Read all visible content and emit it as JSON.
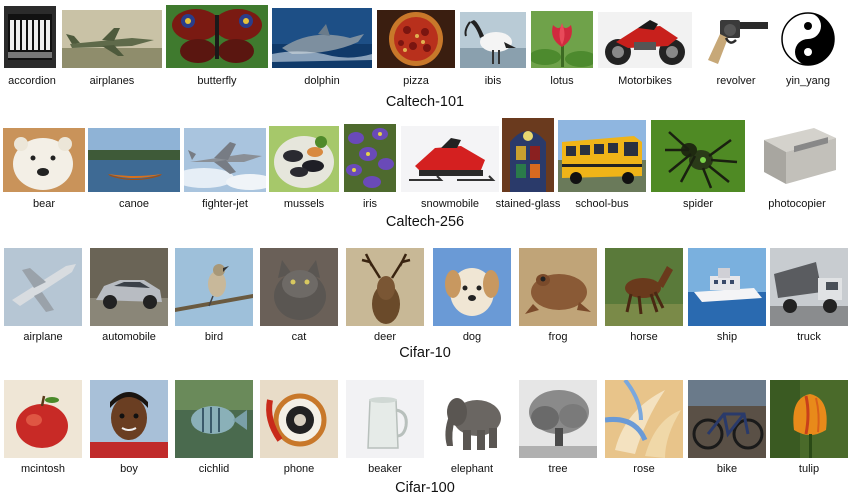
{
  "datasets": [
    {
      "caption": "Caltech-101",
      "items": [
        {
          "label": "accordion",
          "icon": "accordion-image"
        },
        {
          "label": "airplanes",
          "icon": "airplane-image"
        },
        {
          "label": "butterfly",
          "icon": "butterfly-image"
        },
        {
          "label": "dolphin",
          "icon": "dolphin-image"
        },
        {
          "label": "pizza",
          "icon": "pizza-image"
        },
        {
          "label": "ibis",
          "icon": "ibis-image"
        },
        {
          "label": "lotus",
          "icon": "lotus-image"
        },
        {
          "label": "Motorbikes",
          "icon": "motorbike-image"
        },
        {
          "label": "revolver",
          "icon": "revolver-image"
        },
        {
          "label": "yin_yang",
          "icon": "yin-yang-image"
        }
      ]
    },
    {
      "caption": "Caltech-256",
      "items": [
        {
          "label": "bear",
          "icon": "polar-bear-image"
        },
        {
          "label": "canoe",
          "icon": "canoe-image"
        },
        {
          "label": "fighter-jet",
          "icon": "fighter-jet-image"
        },
        {
          "label": "mussels",
          "icon": "mussels-image"
        },
        {
          "label": "iris",
          "icon": "iris-flower-image"
        },
        {
          "label": "snowmobile",
          "icon": "snowmobile-image"
        },
        {
          "label": "stained-glass",
          "icon": "stained-glass-image"
        },
        {
          "label": "school-bus",
          "icon": "school-bus-image"
        },
        {
          "label": "spider",
          "icon": "spider-image"
        },
        {
          "label": "photocopier",
          "icon": "photocopier-image"
        }
      ]
    },
    {
      "caption": "Cifar-10",
      "items": [
        {
          "label": "airplane",
          "icon": "airplane-image"
        },
        {
          "label": "automobile",
          "icon": "car-image"
        },
        {
          "label": "bird",
          "icon": "bird-image"
        },
        {
          "label": "cat",
          "icon": "cat-image"
        },
        {
          "label": "deer",
          "icon": "deer-image"
        },
        {
          "label": "dog",
          "icon": "dog-image"
        },
        {
          "label": "frog",
          "icon": "frog-image"
        },
        {
          "label": "horse",
          "icon": "horse-image"
        },
        {
          "label": "ship",
          "icon": "ship-image"
        },
        {
          "label": "truck",
          "icon": "truck-image"
        }
      ]
    },
    {
      "caption": "Cifar-100",
      "items": [
        {
          "label": "mcintosh",
          "icon": "apple-image"
        },
        {
          "label": "boy",
          "icon": "boy-image"
        },
        {
          "label": "cichlid",
          "icon": "fish-image"
        },
        {
          "label": "phone",
          "icon": "phone-image"
        },
        {
          "label": "beaker",
          "icon": "beaker-image"
        },
        {
          "label": "elephant",
          "icon": "elephant-image"
        },
        {
          "label": "tree",
          "icon": "tree-image"
        },
        {
          "label": "rose",
          "icon": "rose-image"
        },
        {
          "label": "bike",
          "icon": "bike-image"
        },
        {
          "label": "tulip",
          "icon": "tulip-image"
        }
      ]
    }
  ]
}
